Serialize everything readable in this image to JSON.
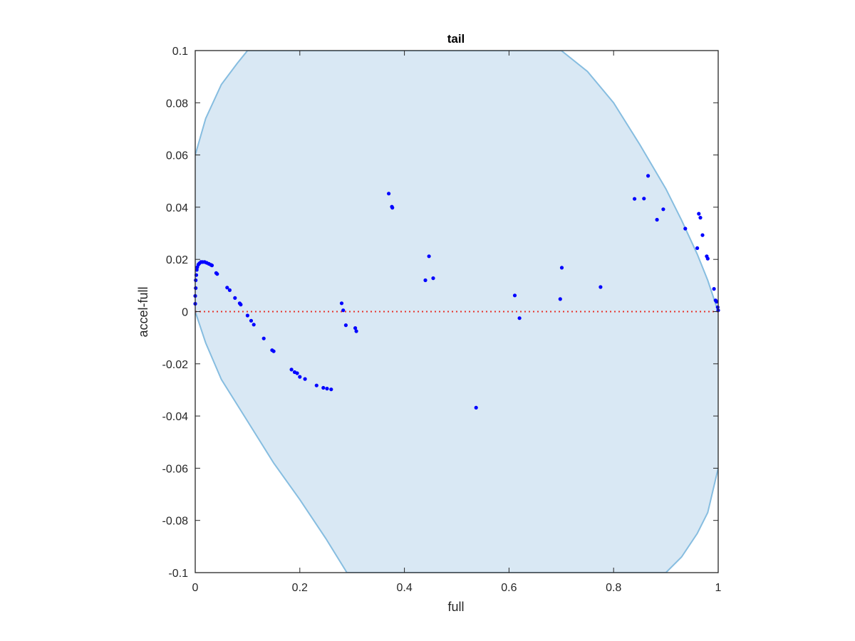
{
  "chart_data": {
    "type": "scatter",
    "title": "tail",
    "xlabel": "full",
    "ylabel": "accel-full",
    "xlim": [
      0,
      1
    ],
    "ylim": [
      -0.1,
      0.1
    ],
    "xticks": [
      0,
      0.2,
      0.4,
      0.6,
      0.8,
      1
    ],
    "xtick_labels": [
      "0",
      "0.2",
      "0.4",
      "0.6",
      "0.8",
      "1"
    ],
    "yticks": [
      0.1,
      0.08,
      0.06,
      0.04,
      0.02,
      0,
      -0.02,
      -0.04,
      -0.06,
      -0.08,
      -0.1
    ],
    "ytick_labels": [
      "0.1",
      "0.08",
      "0.06",
      "0.04",
      "0.02",
      "0",
      "-0.02",
      "-0.04",
      "-0.06",
      "-0.08",
      "-0.1"
    ],
    "grid": false,
    "box": true,
    "reference_line": {
      "y": 0,
      "style": "dotted",
      "color": "#e8332a"
    },
    "region": {
      "description": "shaded feasible region bounded by y = ±0.06 at x = 0 and x = 1",
      "fill": "#d9e8f4",
      "stroke": "#86bde0",
      "upper_boundary": [
        [
          0,
          0.06
        ],
        [
          0.02,
          0.074
        ],
        [
          0.05,
          0.087
        ],
        [
          0.08,
          0.095
        ],
        [
          0.1,
          0.1
        ],
        [
          0.7,
          0.1
        ],
        [
          0.75,
          0.092
        ],
        [
          0.8,
          0.08
        ],
        [
          0.85,
          0.064
        ],
        [
          0.9,
          0.047
        ],
        [
          0.93,
          0.035
        ],
        [
          0.96,
          0.022
        ],
        [
          0.98,
          0.012
        ],
        [
          1,
          0
        ]
      ],
      "lower_boundary": [
        [
          0,
          0
        ],
        [
          0.02,
          -0.012
        ],
        [
          0.05,
          -0.026
        ],
        [
          0.1,
          -0.042
        ],
        [
          0.15,
          -0.058
        ],
        [
          0.2,
          -0.072
        ],
        [
          0.25,
          -0.087
        ],
        [
          0.29,
          -0.1
        ],
        [
          0.9,
          -0.1
        ],
        [
          0.93,
          -0.094
        ],
        [
          0.96,
          -0.085
        ],
        [
          0.98,
          -0.077
        ],
        [
          1,
          -0.06
        ]
      ]
    },
    "series": [
      {
        "marker": "dot",
        "color": "#0000ff",
        "x": [
          0.0,
          0.0,
          0.001,
          0.001,
          0.002,
          0.003,
          0.004,
          0.006,
          0.008,
          0.011,
          0.014,
          0.018,
          0.022,
          0.026,
          0.03,
          0.032,
          0.04,
          0.042,
          0.061,
          0.066,
          0.076,
          0.085,
          0.087,
          0.1,
          0.107,
          0.112,
          0.131,
          0.147,
          0.15,
          0.184,
          0.19,
          0.195,
          0.2,
          0.21,
          0.232,
          0.245,
          0.252,
          0.26,
          0.28,
          0.283,
          0.288,
          0.306,
          0.308,
          0.37,
          0.376,
          0.377,
          0.44,
          0.447,
          0.455,
          0.537,
          0.611,
          0.62,
          0.698,
          0.701,
          0.775,
          0.84,
          0.858,
          0.866,
          0.883,
          0.895,
          0.937,
          0.96,
          0.963,
          0.966,
          0.97,
          0.978,
          0.98,
          0.992,
          0.995,
          0.997,
          0.999,
          1.0
        ],
        "y": [
          0.003,
          0.006,
          0.009,
          0.012,
          0.014,
          0.016,
          0.017,
          0.018,
          0.0185,
          0.019,
          0.019,
          0.019,
          0.0187,
          0.0183,
          0.0179,
          0.0177,
          0.0148,
          0.0144,
          0.0092,
          0.0082,
          0.0052,
          0.0032,
          0.0027,
          -0.0015,
          -0.0035,
          -0.005,
          -0.0103,
          -0.0148,
          -0.0152,
          -0.0222,
          -0.0232,
          -0.0236,
          -0.025,
          -0.0258,
          -0.0283,
          -0.0292,
          -0.0295,
          -0.0298,
          0.0032,
          0.0005,
          -0.0052,
          -0.0063,
          -0.0075,
          0.0452,
          0.0402,
          0.0398,
          0.012,
          0.0212,
          0.0128,
          -0.0368,
          0.0062,
          -0.0025,
          0.0048,
          0.0168,
          0.0094,
          0.0432,
          0.0433,
          0.052,
          0.0352,
          0.0392,
          0.0318,
          0.0243,
          0.0375,
          0.036,
          0.0293,
          0.0212,
          0.0203,
          0.0087,
          0.0043,
          0.0038,
          0.0017,
          0.0005
        ]
      }
    ]
  }
}
